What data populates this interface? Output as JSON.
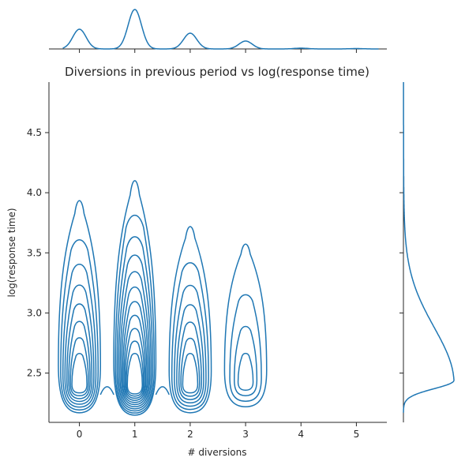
{
  "chart_data": {
    "type": "contour-kde-joint",
    "title": "Diversions in previous period vs log(response time)",
    "xlabel": "# diversions",
    "ylabel": "log(response time)",
    "xlim": [
      -0.55,
      5.55
    ],
    "ylim": [
      2.09,
      4.92
    ],
    "xticks": [
      0,
      1,
      2,
      3,
      4,
      5
    ],
    "xtick_labels": [
      "0",
      "1",
      "2",
      "3",
      "4",
      "5"
    ],
    "yticks": [
      2.5,
      3.0,
      3.5,
      4.0,
      4.5
    ],
    "ytick_labels": [
      "2.5",
      "3.0",
      "3.5",
      "4.0",
      "4.5"
    ],
    "color": "#1f77b4",
    "grid": false,
    "clusters": [
      {
        "x": 0,
        "outer_x": [
          -0.38,
          0.38
        ],
        "outer_y": [
          2.17,
          3.97
        ],
        "levels": 8
      },
      {
        "x": 1,
        "outer_x": [
          -0.38,
          0.38
        ],
        "outer_y": [
          2.15,
          4.14
        ],
        "levels": 11
      },
      {
        "x": 2,
        "outer_x": [
          -0.38,
          0.38
        ],
        "outer_y": [
          2.17,
          3.75
        ],
        "levels": 7
      },
      {
        "x": 3,
        "outer_x": [
          -0.38,
          0.38
        ],
        "outer_y": [
          2.22,
          3.6
        ],
        "levels": 4
      }
    ],
    "marginal_x": {
      "peaks": [
        {
          "x": 0,
          "height": 0.5
        },
        {
          "x": 1,
          "height": 1.0
        },
        {
          "x": 2,
          "height": 0.4
        },
        {
          "x": 3,
          "height": 0.2
        },
        {
          "x": 4,
          "height": 0.02
        },
        {
          "x": 5,
          "height": 0.01
        }
      ]
    },
    "marginal_y": {
      "mode": 2.44,
      "range": [
        2.17,
        4.92
      ]
    }
  }
}
